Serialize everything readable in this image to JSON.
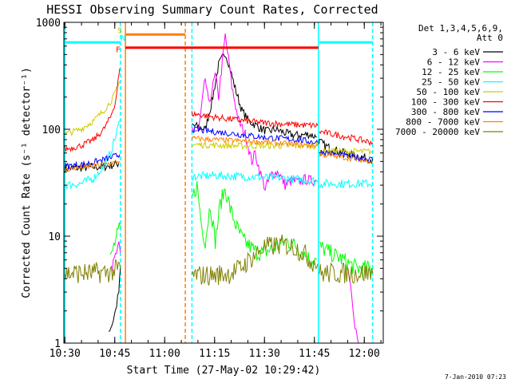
{
  "chart_data": {
    "type": "line",
    "title": "HESSI Observing Summary Count Rates, Corrected",
    "xlabel": "Start Time (27-May-02 10:29:42)",
    "ylabel": "Corrected Count Rate (s⁻¹ detector⁻¹)",
    "x_unit": "minutes since 10:29:42 on 27-May-02",
    "xlim": [
      0,
      96
    ],
    "ylim": [
      1,
      1000
    ],
    "y_scale": "log",
    "x_ticks": [
      {
        "value": 0.3,
        "label": "10:30"
      },
      {
        "value": 15.3,
        "label": "10:45"
      },
      {
        "value": 30.3,
        "label": "11:00"
      },
      {
        "value": 45.3,
        "label": "11:15"
      },
      {
        "value": 60.3,
        "label": "11:30"
      },
      {
        "value": 75.3,
        "label": "11:45"
      },
      {
        "value": 90.3,
        "label": "12:00"
      }
    ],
    "y_ticks": [
      {
        "value": 1,
        "label": "1"
      },
      {
        "value": 10,
        "label": "10"
      },
      {
        "value": 100,
        "label": "100"
      },
      {
        "value": 1000,
        "label": "1000"
      }
    ],
    "legend": {
      "position": "right",
      "header": [
        "Det 1,3,4,5,6,9,",
        "Att 0"
      ],
      "entries": [
        {
          "label": "3 - 6 keV",
          "color": "#000000"
        },
        {
          "label": "6 - 12 keV",
          "color": "#ff00ff"
        },
        {
          "label": "12 - 25 keV",
          "color": "#00ff00"
        },
        {
          "label": "25 - 50 keV",
          "color": "#00ffff"
        },
        {
          "label": "50 - 100 keV",
          "color": "#cccc00"
        },
        {
          "label": "100 - 300 keV",
          "color": "#ff0000"
        },
        {
          "label": "300 - 800 keV",
          "color": "#0000ff"
        },
        {
          "label": "800 - 7000 keV",
          "color": "#ff8000"
        },
        {
          "label": "7000 - 20000 keV",
          "color": "#808000"
        }
      ]
    },
    "markers": [
      {
        "label": "S",
        "color": "#cccc00",
        "x": 17.3
      },
      {
        "label": "N",
        "color": "#00ffff",
        "x": 18.3
      },
      {
        "label": "F",
        "color": "#ff0000",
        "x": 16.8
      }
    ],
    "status_bars": [
      {
        "color": "#00ffff",
        "y": 650,
        "x_start": 0.3,
        "x_end": 17.0
      },
      {
        "color": "#00ffff",
        "y": 650,
        "x_start": 76.8,
        "x_end": 92.8
      },
      {
        "color": "#ff8000",
        "y": 770,
        "x_start": 18.5,
        "x_end": 36.5
      },
      {
        "color": "#ff0000",
        "y": 580,
        "x_start": 18.5,
        "x_end": 76.5
      }
    ],
    "vlines": [
      {
        "x": 0.3,
        "color": "#00ffff",
        "style": "solid"
      },
      {
        "x": 17.0,
        "color": "#00ffff",
        "style": "dashed"
      },
      {
        "x": 18.5,
        "color": "#ff8000",
        "style": "solid"
      },
      {
        "x": 36.5,
        "color": "#ff8000",
        "style": "dashed"
      },
      {
        "x": 38.5,
        "color": "#00ffff",
        "style": "dashed"
      },
      {
        "x": 76.5,
        "color": "#00ffff",
        "style": "solid"
      },
      {
        "x": 92.8,
        "color": "#00ffff",
        "style": "dashed"
      }
    ],
    "series": [
      {
        "name": "3 - 6 keV",
        "color": "#000000",
        "noise": 0.04,
        "segments": [
          [
            [
              0.3,
              43
            ],
            [
              8,
              44
            ],
            [
              13,
              45
            ],
            [
              15.5,
              47
            ],
            [
              16.5,
              48
            ]
          ],
          [
            [
              13.5,
              1.3
            ],
            [
              14.5,
              1.5
            ],
            [
              15.5,
              2.0
            ],
            [
              16.5,
              3.0
            ],
            [
              17.0,
              5.0
            ]
          ],
          [
            [
              38.5,
              110
            ],
            [
              40.5,
              105
            ],
            [
              42.5,
              100
            ],
            [
              44.5,
              180
            ],
            [
              46.5,
              400
            ],
            [
              48.5,
              520
            ],
            [
              49.5,
              420
            ],
            [
              51.5,
              240
            ],
            [
              53.5,
              150
            ],
            [
              55.5,
              120
            ],
            [
              57.5,
              110
            ],
            [
              59.5,
              100
            ],
            [
              61.5,
              95
            ],
            [
              63.5,
              100
            ],
            [
              65.5,
              95
            ],
            [
              67.5,
              90
            ],
            [
              69.5,
              88
            ],
            [
              71.5,
              88
            ],
            [
              73.5,
              90
            ],
            [
              76,
              85
            ]
          ],
          [
            [
              76.6,
              78
            ],
            [
              78.5,
              70
            ],
            [
              82.5,
              62
            ],
            [
              86.5,
              58
            ],
            [
              89.5,
              55
            ],
            [
              92.8,
              52
            ]
          ]
        ]
      },
      {
        "name": "6 - 12 keV",
        "color": "#ff00ff",
        "noise": 0.05,
        "segments": [
          [
            [
              14.5,
              5.0
            ],
            [
              15.5,
              6.5
            ],
            [
              16.5,
              8.0
            ],
            [
              17.0,
              7.0
            ]
          ],
          [
            [
              38.5,
              100
            ],
            [
              40.5,
              95
            ],
            [
              42.5,
              300
            ],
            [
              43.5,
              170
            ],
            [
              44.5,
              230
            ],
            [
              45.5,
              320
            ],
            [
              46.5,
              200
            ],
            [
              48.5,
              750
            ],
            [
              49.5,
              450
            ],
            [
              50.5,
              250
            ],
            [
              52.5,
              120
            ],
            [
              54.5,
              90
            ],
            [
              56.5,
              50
            ],
            [
              57.5,
              60
            ],
            [
              58.5,
              45
            ],
            [
              59.5,
              35
            ],
            [
              60.5,
              28
            ],
            [
              62.5,
              38
            ],
            [
              64.5,
              40
            ],
            [
              66.5,
              30
            ],
            [
              68.5,
              33
            ],
            [
              70.5,
              32
            ],
            [
              72.5,
              34
            ],
            [
              74.5,
              33
            ],
            [
              76,
              33
            ]
          ],
          [
            [
              85.5,
              5
            ],
            [
              86.5,
              3
            ],
            [
              87.5,
              1.5
            ],
            [
              88.5,
              1.0
            ]
          ]
        ]
      },
      {
        "name": "12 - 25 keV",
        "color": "#00ff00",
        "noise": 0.08,
        "segments": [
          [
            [
              14,
              6
            ],
            [
              15,
              8
            ],
            [
              16,
              10
            ],
            [
              17,
              12
            ]
          ],
          [
            [
              38.5,
              22
            ],
            [
              40,
              30
            ],
            [
              41.5,
              12
            ],
            [
              42.5,
              9
            ],
            [
              44,
              20
            ],
            [
              45.5,
              9
            ],
            [
              47,
              20
            ],
            [
              48.5,
              28
            ],
            [
              50,
              18
            ],
            [
              52,
              12
            ],
            [
              54,
              9
            ],
            [
              56,
              8
            ],
            [
              58,
              7
            ],
            [
              60,
              7
            ],
            [
              64,
              8
            ],
            [
              67,
              9
            ],
            [
              70,
              8
            ],
            [
              72,
              7
            ],
            [
              74,
              6
            ],
            [
              76,
              6
            ]
          ],
          [
            [
              76.8,
              8
            ],
            [
              80,
              7
            ],
            [
              84,
              6
            ],
            [
              88,
              5
            ],
            [
              92.8,
              5
            ]
          ]
        ]
      },
      {
        "name": "25 - 50 keV",
        "color": "#00ffff",
        "noise": 0.04,
        "segments": [
          [
            [
              0.3,
              30
            ],
            [
              5,
              31
            ],
            [
              9,
              35
            ],
            [
              12,
              45
            ],
            [
              14,
              60
            ],
            [
              15.5,
              85
            ],
            [
              16.8,
              120
            ]
          ],
          [
            [
              38.5,
              36
            ],
            [
              45,
              37
            ],
            [
              55,
              36
            ],
            [
              65,
              35
            ],
            [
              75,
              33
            ],
            [
              76.3,
              32
            ]
          ],
          [
            [
              76.8,
              31
            ],
            [
              85,
              31
            ],
            [
              92.8,
              31
            ]
          ]
        ]
      },
      {
        "name": "50 - 100 keV",
        "color": "#cccc00",
        "noise": 0.03,
        "segments": [
          [
            [
              0.3,
              90
            ],
            [
              5,
              100
            ],
            [
              9,
              120
            ],
            [
              12,
              150
            ],
            [
              14,
              180
            ],
            [
              15.5,
              220
            ],
            [
              16.8,
              280
            ]
          ],
          [
            [
              38.5,
              72
            ],
            [
              45,
              71
            ],
            [
              52,
              70
            ],
            [
              60,
              70
            ],
            [
              70,
              70
            ],
            [
              76.3,
              70
            ]
          ],
          [
            [
              76.8,
              63
            ],
            [
              85,
              62
            ],
            [
              92.8,
              62
            ]
          ]
        ]
      },
      {
        "name": "100 - 300 keV",
        "color": "#ff0000",
        "noise": 0.03,
        "segments": [
          [
            [
              0.3,
              65
            ],
            [
              5,
              70
            ],
            [
              9,
              80
            ],
            [
              12,
              100
            ],
            [
              14,
              130
            ],
            [
              15.5,
              180
            ],
            [
              16.8,
              370
            ]
          ],
          [
            [
              38.5,
              140
            ],
            [
              45,
              130
            ],
            [
              52,
              122
            ],
            [
              60,
              115
            ],
            [
              70,
              110
            ],
            [
              76.3,
              108
            ]
          ],
          [
            [
              76.8,
              95
            ],
            [
              85,
              85
            ],
            [
              92.8,
              75
            ]
          ]
        ]
      },
      {
        "name": "300 - 800 keV",
        "color": "#0000ff",
        "noise": 0.03,
        "segments": [
          [
            [
              0.3,
              45
            ],
            [
              6,
              47
            ],
            [
              10,
              50
            ],
            [
              14,
              54
            ],
            [
              16.8,
              58
            ]
          ],
          [
            [
              38.5,
              100
            ],
            [
              45,
              95
            ],
            [
              52,
              90
            ],
            [
              60,
              84
            ],
            [
              70,
              80
            ],
            [
              76.3,
              75
            ]
          ],
          [
            [
              76.8,
              62
            ],
            [
              85,
              56
            ],
            [
              92.8,
              52
            ]
          ]
        ]
      },
      {
        "name": "800 - 7000 keV",
        "color": "#ff8000",
        "noise": 0.025,
        "segments": [
          [
            [
              0.3,
              42
            ],
            [
              6,
              44
            ],
            [
              10,
              46
            ],
            [
              14,
              48
            ],
            [
              16.8,
              50
            ]
          ],
          [
            [
              38.5,
              82
            ],
            [
              45,
              80
            ],
            [
              52,
              78
            ],
            [
              60,
              76
            ],
            [
              70,
              72
            ],
            [
              76.3,
              70
            ]
          ],
          [
            [
              76.8,
              58
            ],
            [
              85,
              54
            ],
            [
              92.8,
              50
            ]
          ]
        ]
      },
      {
        "name": "7000 - 20000 keV",
        "color": "#808000",
        "noise": 0.1,
        "segments": [
          [
            [
              0.3,
              4.5
            ],
            [
              8,
              4.5
            ],
            [
              14,
              4.6
            ],
            [
              17,
              5
            ]
          ],
          [
            [
              38.5,
              4.3
            ],
            [
              45,
              4.3
            ],
            [
              50,
              4.5
            ],
            [
              53,
              5.0
            ],
            [
              57,
              6.5
            ],
            [
              60,
              7.8
            ],
            [
              65,
              8.3
            ],
            [
              69,
              8
            ],
            [
              72,
              7
            ],
            [
              74,
              6
            ],
            [
              76.3,
              5.5
            ]
          ],
          [
            [
              76.8,
              4.5
            ],
            [
              85,
              4.5
            ],
            [
              92.8,
              4.5
            ]
          ]
        ]
      }
    ]
  },
  "footer_date": "7-Jan-2010 07:23"
}
